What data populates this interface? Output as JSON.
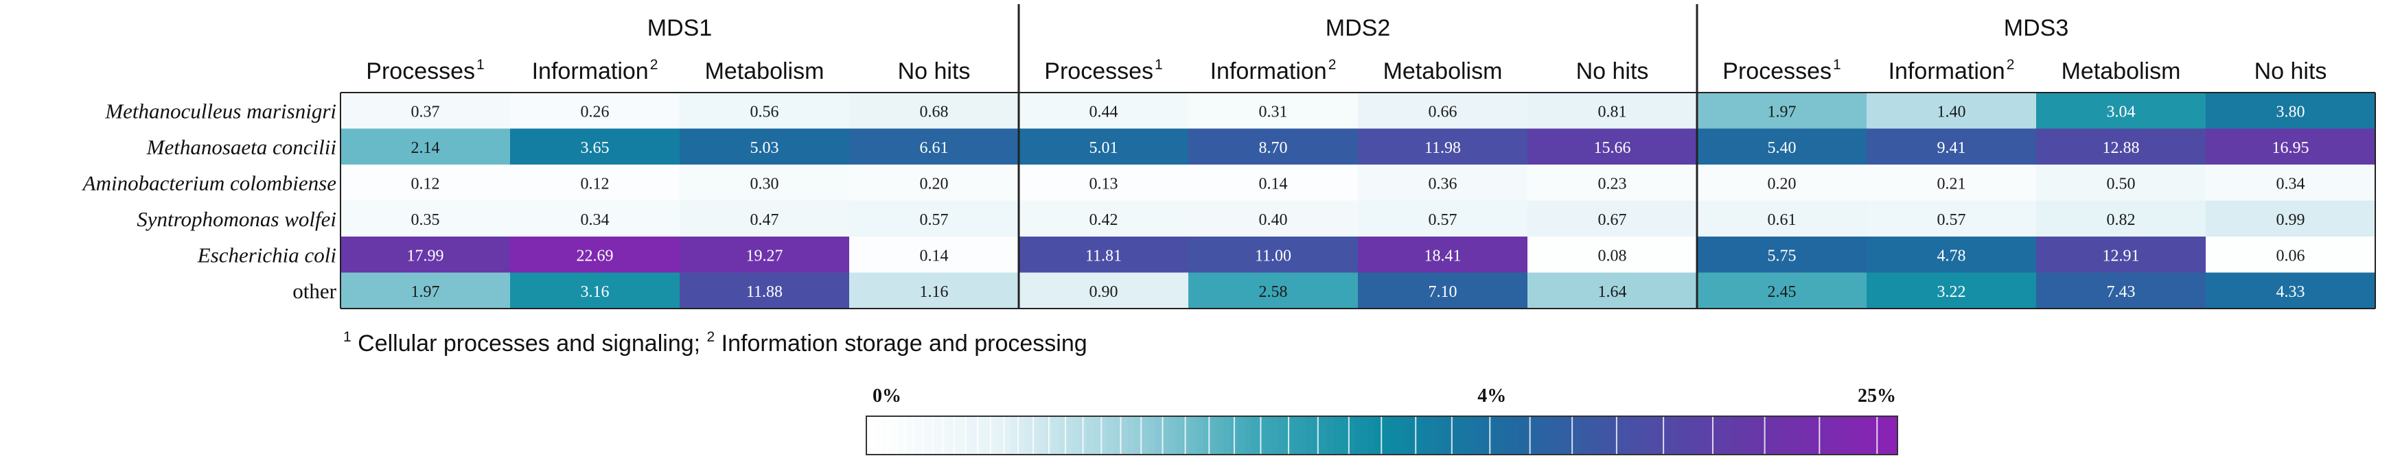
{
  "chart_data": {
    "type": "heatmap",
    "groups": [
      "MDS1",
      "MDS2",
      "MDS3"
    ],
    "columns": [
      {
        "label": "Processes",
        "sup": "1"
      },
      {
        "label": "Information",
        "sup": "2"
      },
      {
        "label": "Metabolism",
        "sup": ""
      },
      {
        "label": "No hits",
        "sup": ""
      }
    ],
    "rows": [
      {
        "label": "Methanoculleus marisnigri",
        "italic": true
      },
      {
        "label": "Methanosaeta concilii",
        "italic": true
      },
      {
        "label": "Aminobacterium colombiense",
        "italic": true
      },
      {
        "label": "Syntrophomonas wolfei",
        "italic": true
      },
      {
        "label": "Escherichia coli",
        "italic": true
      },
      {
        "label": "other",
        "italic": false
      }
    ],
    "values": [
      [
        [
          "0.37",
          "0.26",
          "0.56",
          "0.68"
        ],
        [
          "0.44",
          "0.31",
          "0.66",
          "0.81"
        ],
        [
          "1.97",
          "1.40",
          "3.04",
          "3.80"
        ]
      ],
      [
        [
          "2.14",
          "3.65",
          "5.03",
          "6.61"
        ],
        [
          "5.01",
          "8.70",
          "11.98",
          "15.66"
        ],
        [
          "5.40",
          "9.41",
          "12.88",
          "16.95"
        ]
      ],
      [
        [
          "0.12",
          "0.12",
          "0.30",
          "0.20"
        ],
        [
          "0.13",
          "0.14",
          "0.36",
          "0.23"
        ],
        [
          "0.20",
          "0.21",
          "0.50",
          "0.34"
        ]
      ],
      [
        [
          "0.35",
          "0.34",
          "0.47",
          "0.57"
        ],
        [
          "0.42",
          "0.40",
          "0.57",
          "0.67"
        ],
        [
          "0.61",
          "0.57",
          "0.82",
          "0.99"
        ]
      ],
      [
        [
          "17.99",
          "22.69",
          "19.27",
          "0.14"
        ],
        [
          "11.81",
          "11.00",
          "18.41",
          "0.08"
        ],
        [
          "5.75",
          "4.78",
          "12.91",
          "0.06"
        ]
      ],
      [
        [
          "1.97",
          "3.16",
          "11.88",
          "1.16"
        ],
        [
          "0.90",
          "2.58",
          "7.10",
          "1.64"
        ],
        [
          "2.45",
          "3.22",
          "7.43",
          "4.33"
        ]
      ]
    ],
    "color_scale": {
      "labels": [
        "0%",
        "4%",
        "25%"
      ],
      "min": 0,
      "mid": 4,
      "max": 25,
      "color_stops": [
        "#ffffff",
        "#e6f3f7",
        "#9fd2dc",
        "#3fa8b8",
        "#0e8ba3",
        "#1f6aa0",
        "#4a4fa5",
        "#6a35a8",
        "#8a22b5"
      ]
    }
  },
  "footnote": {
    "sup1": "1",
    "text1": " Cellular processes and signaling; ",
    "sup2": "2",
    "text2": " Information storage and processing"
  }
}
